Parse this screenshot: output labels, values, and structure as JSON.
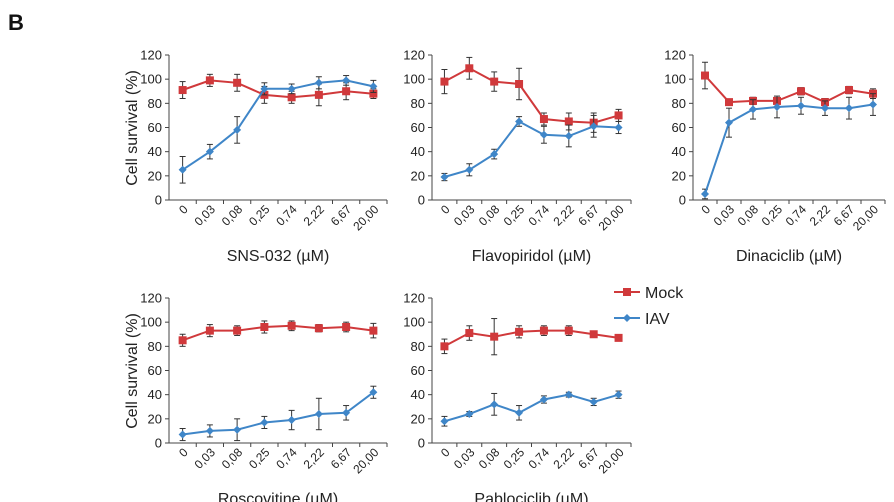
{
  "panel_label": "B",
  "legend": {
    "mock_label": "Mock",
    "iav_label": "IAV"
  },
  "colors": {
    "mock": "#d0393b",
    "iav": "#3f86c8",
    "axis": "#444444",
    "error": "#333333"
  },
  "chart_data": [
    {
      "type": "line",
      "ylabel": "Cell survival (%)",
      "xlabel": "SNS-032 (µM)",
      "categories": [
        "0",
        "0,03",
        "0,08",
        "0,25",
        "0,74",
        "2,22",
        "6,67",
        "20,00"
      ],
      "ylim": [
        0,
        120
      ],
      "yticks": [
        0,
        20,
        40,
        60,
        80,
        100,
        120
      ],
      "series": [
        {
          "name": "Mock",
          "values": [
            91,
            99,
            97,
            87,
            85,
            87,
            90,
            88
          ],
          "errors": [
            7,
            5,
            7,
            7,
            5,
            9,
            7,
            4
          ]
        },
        {
          "name": "IAV",
          "values": [
            25,
            40,
            58,
            92,
            92,
            97,
            99,
            94
          ],
          "errors": [
            11,
            6,
            11,
            5,
            4,
            5,
            4,
            5
          ]
        }
      ]
    },
    {
      "type": "line",
      "ylabel": "",
      "xlabel": "Flavopiridol (µM)",
      "categories": [
        "0",
        "0,03",
        "0,08",
        "0,25",
        "0,74",
        "2,22",
        "6,67",
        "20,00"
      ],
      "ylim": [
        0,
        120
      ],
      "yticks": [
        0,
        20,
        40,
        60,
        80,
        100,
        120
      ],
      "series": [
        {
          "name": "Mock",
          "values": [
            98,
            109,
            98,
            96,
            67,
            65,
            64,
            70
          ],
          "errors": [
            10,
            9,
            8,
            13,
            5,
            7,
            8,
            5
          ]
        },
        {
          "name": "IAV",
          "values": [
            19,
            25,
            38,
            65,
            54,
            53,
            61,
            60
          ],
          "errors": [
            3,
            5,
            4,
            4,
            7,
            9,
            9,
            5
          ]
        }
      ]
    },
    {
      "type": "line",
      "ylabel": "",
      "xlabel": "Dinaciclib (µM)",
      "categories": [
        "0",
        "0,03",
        "0,08",
        "0,25",
        "0,74",
        "2,22",
        "6,67",
        "20,00"
      ],
      "ylim": [
        0,
        120
      ],
      "yticks": [
        0,
        20,
        40,
        60,
        80,
        100,
        120
      ],
      "series": [
        {
          "name": "Mock",
          "values": [
            103,
            81,
            82,
            82,
            90,
            81,
            91,
            88
          ],
          "errors": [
            11,
            2,
            3,
            2,
            3,
            3,
            3,
            4
          ]
        },
        {
          "name": "IAV",
          "values": [
            5,
            64,
            75,
            77,
            78,
            76,
            76,
            79
          ],
          "errors": [
            4,
            12,
            8,
            9,
            7,
            6,
            9,
            9
          ]
        }
      ]
    },
    {
      "type": "line",
      "ylabel": "Cell survival (%)",
      "xlabel": "Roscovitine (µM)",
      "categories": [
        "0",
        "0,03",
        "0,08",
        "0,25",
        "0,74",
        "2,22",
        "6,67",
        "20,00"
      ],
      "ylim": [
        0,
        120
      ],
      "yticks": [
        0,
        20,
        40,
        60,
        80,
        100,
        120
      ],
      "series": [
        {
          "name": "Mock",
          "values": [
            85,
            93,
            93,
            96,
            97,
            95,
            96,
            93
          ],
          "errors": [
            5,
            5,
            4,
            5,
            4,
            3,
            4,
            6
          ]
        },
        {
          "name": "IAV",
          "values": [
            7,
            10,
            11,
            17,
            19,
            24,
            25,
            42
          ],
          "errors": [
            5,
            5,
            9,
            5,
            8,
            13,
            6,
            5
          ]
        }
      ]
    },
    {
      "type": "line",
      "ylabel": "",
      "xlabel": "Pablociclib (µM)",
      "categories": [
        "0",
        "0,03",
        "0,08",
        "0,25",
        "0,74",
        "2,22",
        "6,67",
        "20,00"
      ],
      "ylim": [
        0,
        120
      ],
      "yticks": [
        0,
        20,
        40,
        60,
        80,
        100,
        120
      ],
      "series": [
        {
          "name": "Mock",
          "values": [
            80,
            91,
            88,
            92,
            93,
            93,
            90,
            87
          ],
          "errors": [
            6,
            6,
            15,
            5,
            4,
            4,
            2,
            2
          ]
        },
        {
          "name": "IAV",
          "values": [
            18,
            24,
            32,
            25,
            36,
            40,
            34,
            40
          ],
          "errors": [
            4,
            2,
            9,
            6,
            3,
            2,
            3,
            3
          ]
        }
      ]
    }
  ]
}
